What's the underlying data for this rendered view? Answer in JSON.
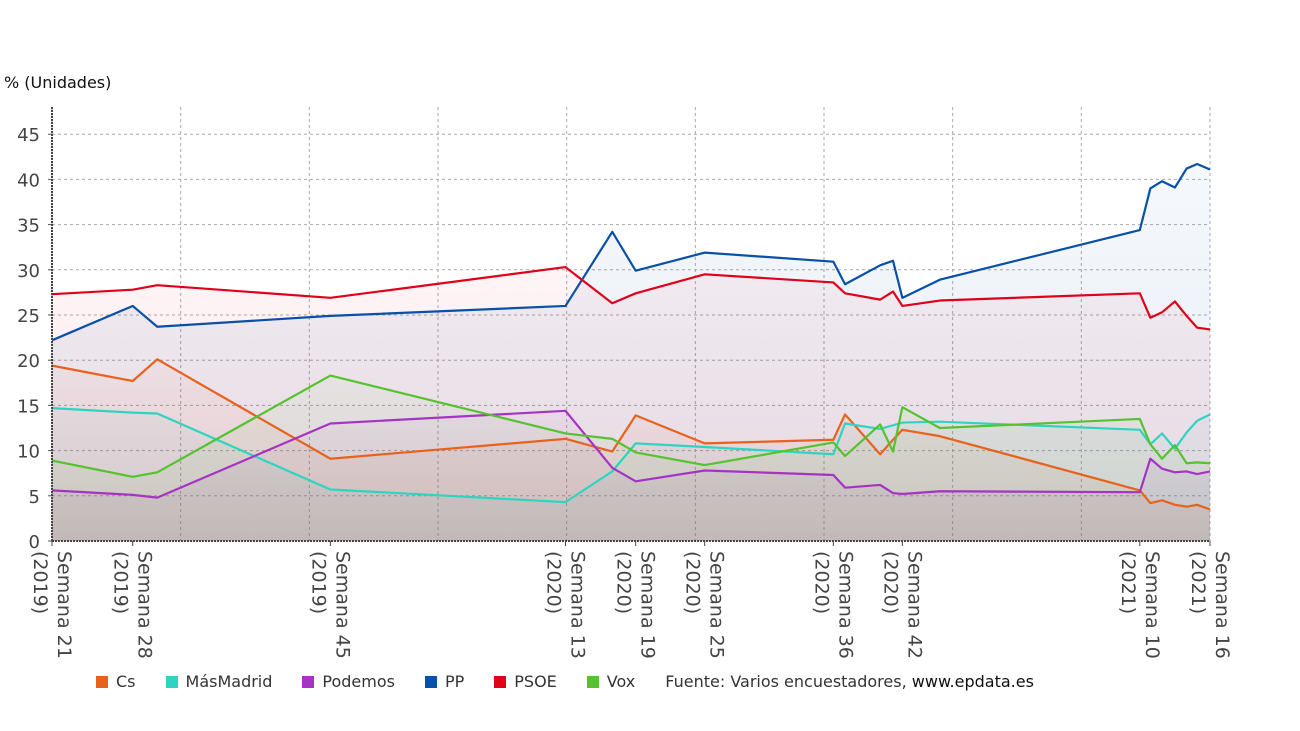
{
  "chart_data": {
    "type": "line",
    "ylabel": "% (Unidades)",
    "ylim": [
      0,
      47
    ],
    "yticks": [
      0,
      5,
      10,
      15,
      20,
      25,
      30,
      35,
      40,
      45
    ],
    "x_unit": "weeks since Semana 21 (2019)",
    "xlim": [
      0,
      99
    ],
    "xticks": [
      {
        "x": 0,
        "line1": "Semana 21",
        "line2": "(2019)"
      },
      {
        "x": 6.9,
        "line1": "Semana 28",
        "line2": "(2019)"
      },
      {
        "x": 23.8,
        "line1": "Semana 45",
        "line2": "(2019)"
      },
      {
        "x": 43.9,
        "line1": "Semana 13",
        "line2": "(2020)"
      },
      {
        "x": 49.9,
        "line1": "Semana 19",
        "line2": "(2020)"
      },
      {
        "x": 55.8,
        "line1": "Semana 25",
        "line2": "(2020)"
      },
      {
        "x": 66.8,
        "line1": "Semana 36",
        "line2": "(2020)"
      },
      {
        "x": 72.7,
        "line1": "Semana 42",
        "line2": "(2020)"
      },
      {
        "x": 93.0,
        "line1": "Semana 10",
        "line2": "(2021)"
      },
      {
        "x": 99.0,
        "line1": "Semana 16",
        "line2": "(2021)"
      }
    ],
    "x": [
      0,
      6.9,
      9.0,
      23.8,
      43.9,
      47.9,
      49.9,
      55.8,
      66.8,
      67.8,
      70.8,
      71.9,
      72.7,
      75.9,
      93.0,
      93.9,
      94.9,
      96.0,
      97.0,
      97.9,
      99.0
    ],
    "grid": true,
    "legend_position": "bottom",
    "series": [
      {
        "name": "Cs",
        "color": "#e8621c",
        "values": [
          19.4,
          17.7,
          20.1,
          9.1,
          11.3,
          9.9,
          13.9,
          10.8,
          11.2,
          14.0,
          9.6,
          11.2,
          12.3,
          11.6,
          5.6,
          4.2,
          4.5,
          4.0,
          3.8,
          4.0,
          3.5
        ]
      },
      {
        "name": "MásMadrid",
        "color": "#2dd4c0",
        "values": [
          14.7,
          14.2,
          14.1,
          5.7,
          4.3,
          7.7,
          10.8,
          10.4,
          9.6,
          13.0,
          12.4,
          12.8,
          13.1,
          13.2,
          12.3,
          10.7,
          11.9,
          10.2,
          12.0,
          13.3,
          14.0
        ]
      },
      {
        "name": "Podemos",
        "color": "#a633c4",
        "values": [
          5.6,
          5.1,
          4.8,
          13.0,
          14.4,
          8.1,
          6.6,
          7.8,
          7.3,
          5.9,
          6.2,
          5.3,
          5.2,
          5.5,
          5.4,
          9.1,
          8.0,
          7.6,
          7.7,
          7.4,
          7.7
        ]
      },
      {
        "name": "PP",
        "color": "#0850a8",
        "values": [
          22.2,
          26.0,
          23.7,
          24.9,
          26.0,
          34.2,
          29.9,
          31.9,
          30.9,
          28.4,
          30.5,
          31.0,
          26.9,
          28.9,
          34.4,
          39.0,
          39.8,
          39.1,
          41.2,
          41.7,
          41.1
        ]
      },
      {
        "name": "PSOE",
        "color": "#e0001a",
        "values": [
          27.3,
          27.8,
          28.3,
          26.9,
          30.3,
          26.3,
          27.4,
          29.5,
          28.6,
          27.4,
          26.7,
          27.6,
          26.0,
          26.6,
          27.4,
          24.7,
          25.3,
          26.5,
          24.9,
          23.6,
          23.4
        ]
      },
      {
        "name": "Vox",
        "color": "#55c22e",
        "values": [
          8.9,
          7.1,
          7.6,
          18.3,
          11.9,
          11.3,
          9.8,
          8.4,
          10.9,
          9.4,
          12.9,
          9.9,
          14.8,
          12.5,
          13.5,
          10.7,
          9.1,
          10.6,
          8.6,
          8.7,
          8.6
        ]
      }
    ],
    "source_prefix": "Fuente: Varios encuestadores, ",
    "source_site": "www.epdata.es"
  }
}
